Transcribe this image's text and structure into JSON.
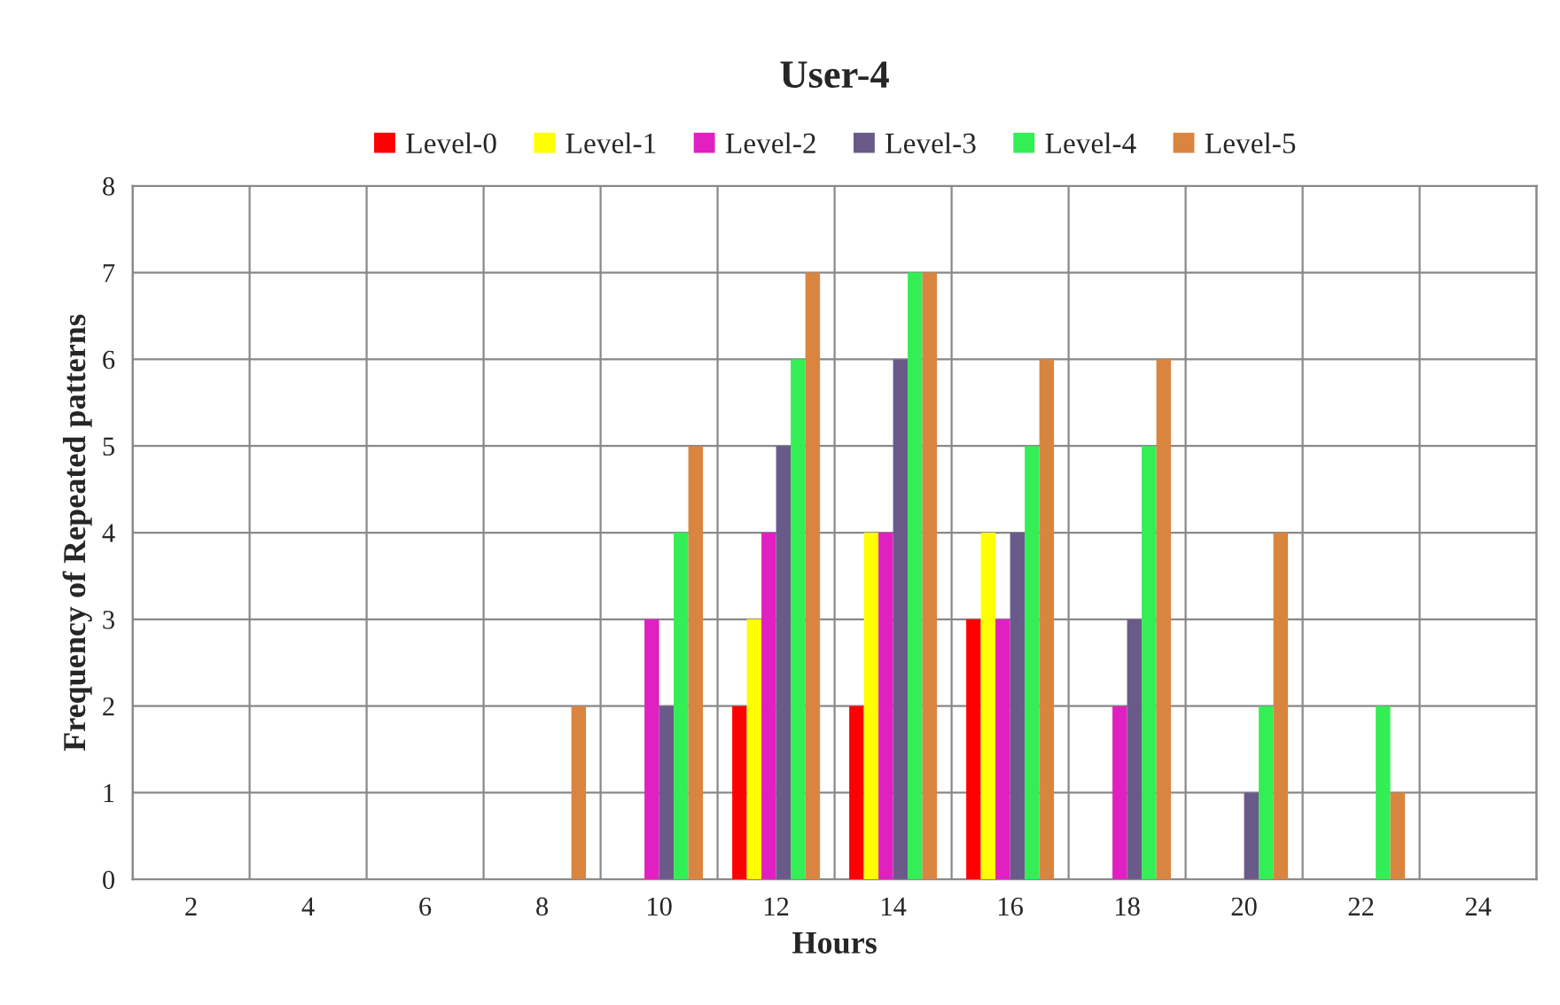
{
  "chart_data": {
    "type": "bar",
    "title": "User-4",
    "xlabel": "Hours",
    "ylabel": "Frequency of Repeated patterns",
    "categories": [
      "2",
      "4",
      "6",
      "8",
      "10",
      "12",
      "14",
      "16",
      "18",
      "20",
      "22",
      "24"
    ],
    "series": [
      {
        "name": "Level-0",
        "color": "#ff0000",
        "values": [
          0,
          0,
          0,
          0,
          0,
          2,
          2,
          3,
          0,
          0,
          0,
          0
        ]
      },
      {
        "name": "Level-1",
        "color": "#ffff00",
        "values": [
          0,
          0,
          0,
          0,
          0,
          3,
          4,
          4,
          0,
          0,
          0,
          0
        ]
      },
      {
        "name": "Level-2",
        "color": "#e020c0",
        "values": [
          0,
          0,
          0,
          0,
          3,
          4,
          4,
          3,
          2,
          0,
          0,
          0
        ]
      },
      {
        "name": "Level-3",
        "color": "#6a5a8a",
        "values": [
          0,
          0,
          0,
          0,
          2,
          5,
          6,
          4,
          3,
          1,
          0,
          0
        ]
      },
      {
        "name": "Level-4",
        "color": "#33ee55",
        "values": [
          0,
          0,
          0,
          0,
          4,
          6,
          7,
          5,
          5,
          2,
          2,
          0
        ]
      },
      {
        "name": "Level-5",
        "color": "#d98540",
        "values": [
          0,
          0,
          0,
          2,
          5,
          7,
          7,
          6,
          6,
          4,
          1,
          0
        ]
      }
    ],
    "ylim": [
      0,
      8
    ],
    "yticks": [
      0,
      1,
      2,
      3,
      4,
      5,
      6,
      7,
      8
    ],
    "grid": true,
    "legend": "top"
  }
}
